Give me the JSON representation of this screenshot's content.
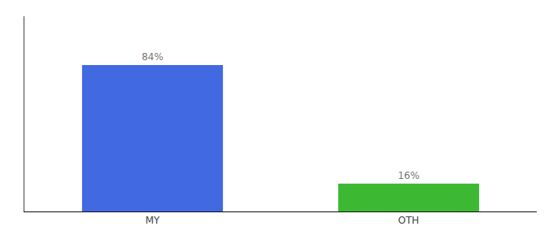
{
  "chart_data": {
    "type": "bar",
    "categories": [
      "MY",
      "OTH"
    ],
    "values": [
      84,
      16
    ],
    "value_labels": [
      "84%",
      "16%"
    ],
    "colors": [
      "#4169e1",
      "#3cb832"
    ],
    "ylim": [
      0,
      112
    ],
    "grid": false,
    "data_labels": true,
    "tick_labels": "x"
  }
}
